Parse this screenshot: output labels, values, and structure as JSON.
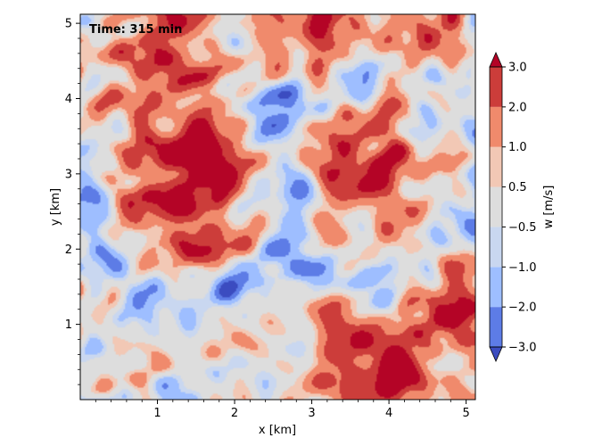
{
  "chart_data": {
    "type": "heatmap",
    "title": "",
    "annotation": "Time: 315 min",
    "xlabel": "x [km]",
    "ylabel": "y [km]",
    "xlim": [
      0.0,
      5.12
    ],
    "ylim": [
      0.0,
      5.12
    ],
    "xticks": [
      1,
      2,
      3,
      4,
      5
    ],
    "yticks": [
      1,
      2,
      3,
      4,
      5
    ],
    "field": "w",
    "colorbar": {
      "label": "w [m/s]",
      "levels": [
        -3.0,
        -2.0,
        -1.0,
        -0.5,
        0.5,
        1.0,
        2.0,
        3.0
      ],
      "tick_labels": [
        "−3.0",
        "−2.0",
        "−1.0",
        "−0.5",
        "0.5",
        "1.0",
        "2.0",
        "3.0"
      ],
      "extend": "both",
      "colors": {
        "under": "#3b4cc0",
        "bins": [
          "#5d7ce6",
          "#9ebeff",
          "#c9d7f0",
          "#dddddd",
          "#f2c8b5",
          "#f08a6c",
          "#cc3d3a"
        ],
        "over": "#b40426"
      }
    },
    "features": {
      "updrafts": [
        {
          "x": 1.45,
          "y": 2.6,
          "w": 3.0
        },
        {
          "x": 1.6,
          "y": 3.55,
          "w": 2.3
        },
        {
          "x": 3.65,
          "y": 3.1,
          "w": 2.8
        },
        {
          "x": 4.8,
          "y": 1.35,
          "w": 2.8
        },
        {
          "x": 2.95,
          "y": 4.95,
          "w": 2.3
        },
        {
          "x": 4.25,
          "y": 4.85,
          "w": 2.3
        },
        {
          "x": 3.55,
          "y": 0.6,
          "w": 2.0
        },
        {
          "x": 4.25,
          "y": 0.25,
          "w": 2.3
        },
        {
          "x": 1.25,
          "y": 5.05,
          "w": 2.3
        },
        {
          "x": 0.75,
          "y": 3.95,
          "w": 2.0
        }
      ],
      "downdraft_rings": [
        {
          "x": 1.45,
          "y": 2.7,
          "r": 1.35,
          "w": -1.6
        },
        {
          "x": 3.8,
          "y": 3.0,
          "r": 1.45,
          "w": -1.6
        },
        {
          "x": 4.8,
          "y": 1.35,
          "r": 0.75,
          "w": -1.3
        },
        {
          "x": 3.1,
          "y": 5.0,
          "r": 1.0,
          "w": -1.2
        }
      ]
    }
  }
}
